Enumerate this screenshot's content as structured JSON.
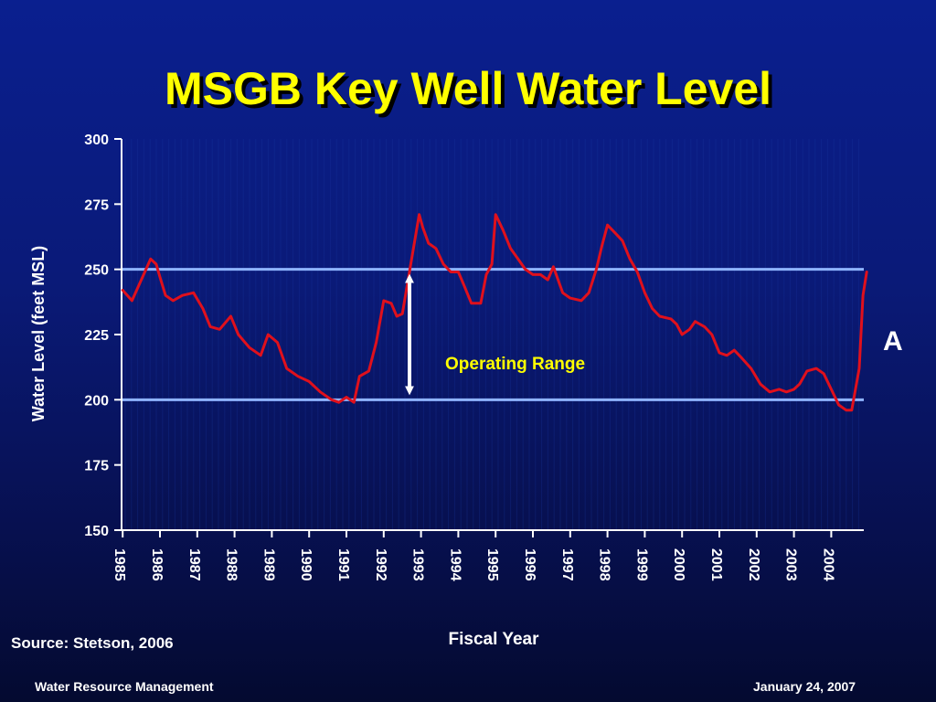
{
  "slide": {
    "title": "MSGB Key Well Water Level",
    "source": "Source: Stetson, 2006",
    "footer_left": "Water Resource Management",
    "footer_right": "January 24, 2007",
    "side_label": "A"
  },
  "colors": {
    "series": "#e0101c",
    "reference_lines": "#8fb4ff",
    "text": "#ffffff",
    "title": "#ffff00"
  },
  "chart_data": {
    "type": "line",
    "title": "MSGB Key Well Water Level",
    "xlabel": "Fiscal Year",
    "ylabel": "Water Level (feet MSL)",
    "ylim": [
      150,
      300
    ],
    "yticks": [
      150,
      175,
      200,
      225,
      250,
      275,
      300
    ],
    "xlim": [
      1985,
      2005
    ],
    "xticks": [
      1985,
      1986,
      1987,
      1988,
      1989,
      1990,
      1991,
      1992,
      1993,
      1994,
      1995,
      1996,
      1997,
      1998,
      1999,
      2000,
      2001,
      2002,
      2003,
      2004
    ],
    "grid": false,
    "legend": "none",
    "reference_lines": [
      250,
      200
    ],
    "annotations": [
      {
        "text": "Operating Range",
        "x": 1993.0,
        "y": 225,
        "type": "double-arrow",
        "from": 200,
        "to": 250
      }
    ],
    "series": [
      {
        "x": [
          1985.0,
          1985.25,
          1985.5,
          1985.75,
          1985.9,
          1986.0,
          1986.15,
          1986.35,
          1986.6,
          1986.9,
          1987.15,
          1987.35,
          1987.6,
          1987.9,
          1988.1,
          1988.4,
          1988.7,
          1988.9,
          1989.15,
          1989.4,
          1989.7,
          1990.0,
          1990.3,
          1990.6,
          1990.8,
          1991.0,
          1991.2,
          1991.35,
          1991.6,
          1991.8,
          1992.0,
          1992.2,
          1992.35,
          1992.5,
          1992.7,
          1992.95,
          1993.05,
          1993.2,
          1993.4,
          1993.6,
          1993.8,
          1994.0,
          1994.15,
          1994.35,
          1994.6,
          1994.75,
          1994.9,
          1995.0,
          1995.2,
          1995.4,
          1995.6,
          1995.8,
          1996.0,
          1996.2,
          1996.4,
          1996.55,
          1996.8,
          1997.0,
          1997.3,
          1997.5,
          1997.7,
          1997.85,
          1998.0,
          1998.2,
          1998.4,
          1998.6,
          1998.8,
          1999.0,
          1999.2,
          1999.4,
          1999.7,
          1999.85,
          2000.0,
          2000.2,
          2000.35,
          2000.6,
          2000.8,
          2001.0,
          2001.2,
          2001.4,
          2001.6,
          2001.85,
          2002.1,
          2002.35,
          2002.6,
          2002.8,
          2003.0,
          2003.15,
          2003.35,
          2003.6,
          2003.8,
          2004.0,
          2004.2,
          2004.4,
          2004.55,
          2004.75,
          2004.85,
          2004.95
        ],
        "y": [
          242,
          238,
          246,
          254,
          252,
          247,
          240,
          238,
          240,
          241,
          235,
          228,
          227,
          232,
          225,
          220,
          217,
          225,
          222,
          212,
          209,
          207,
          203,
          200,
          199,
          201,
          199,
          209,
          211,
          222,
          238,
          237,
          232,
          233,
          250,
          271,
          266,
          260,
          258,
          252,
          249,
          249,
          244,
          237,
          237,
          248,
          252,
          271,
          265,
          258,
          254,
          250,
          248,
          248,
          246,
          251,
          241,
          239,
          238,
          241,
          250,
          259,
          267,
          264,
          261,
          254,
          249,
          241,
          235,
          232,
          231,
          229,
          225,
          227,
          230,
          228,
          225,
          218,
          217,
          219,
          216,
          212,
          206,
          203,
          204,
          203,
          204,
          206,
          211,
          212,
          210,
          204,
          198,
          196,
          196,
          212,
          240,
          249
        ]
      }
    ]
  }
}
